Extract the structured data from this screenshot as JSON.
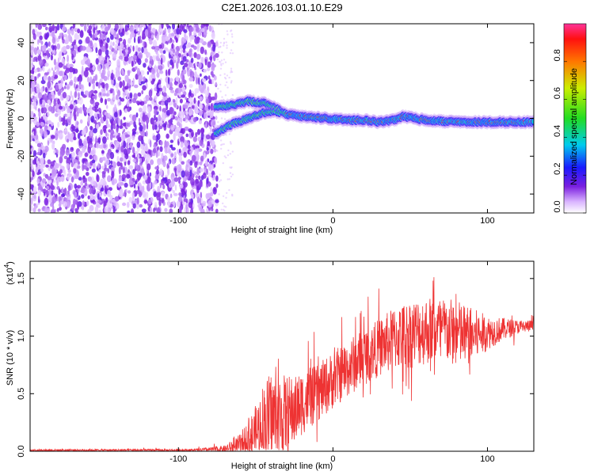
{
  "chart_data": [
    {
      "type": "heatmap",
      "title": "C2E1.2026.103.01.10.E29",
      "xlabel": "Height of straight line (km)",
      "ylabel": "Frequency (Hz)",
      "xlim": [
        -196,
        130
      ],
      "ylim": [
        -50,
        50
      ],
      "x_ticks": [
        -100,
        0,
        100
      ],
      "x_tick_labels": [
        "-100",
        "0",
        "100"
      ],
      "y_ticks": [
        -40,
        -20,
        0,
        20,
        40
      ],
      "y_tick_labels": [
        "-40",
        "-20",
        "0",
        "20",
        "40"
      ],
      "noise_region_x": [
        -196,
        -75
      ],
      "trace": [
        {
          "x": -76,
          "y_upper": 6,
          "y_lower": -8
        },
        {
          "x": -65,
          "y_upper": 7,
          "y_lower": -3
        },
        {
          "x": -55,
          "y_upper": 9,
          "y_lower": 0
        },
        {
          "x": -45,
          "y_upper": 8,
          "y_lower": 3
        },
        {
          "x": -38,
          "y_upper": 6,
          "y_lower": 4
        },
        {
          "x": -30,
          "y_upper": 2,
          "y_lower": 2
        },
        {
          "x": -20,
          "y_upper": 1,
          "y_lower": 1
        },
        {
          "x": -5,
          "y_upper": 0,
          "y_lower": 0
        },
        {
          "x": 10,
          "y_upper": -1,
          "y_lower": -1
        },
        {
          "x": 20,
          "y_upper": -1,
          "y_lower": -1
        },
        {
          "x": 30,
          "y_upper": -2,
          "y_lower": -2
        },
        {
          "x": 40,
          "y_upper": -1,
          "y_lower": -1
        },
        {
          "x": 45,
          "y_upper": 1,
          "y_lower": 1
        },
        {
          "x": 60,
          "y_upper": -1,
          "y_lower": -1
        },
        {
          "x": 80,
          "y_upper": -2,
          "y_lower": -2
        },
        {
          "x": 100,
          "y_upper": -2,
          "y_lower": -2
        },
        {
          "x": 130,
          "y_upper": -2,
          "y_lower": -2
        }
      ],
      "colorbar": {
        "label": "Normalized spectral amplitude",
        "ticks": [
          "0.0",
          "0.2",
          "0.4",
          "0.6",
          "0.8"
        ],
        "tick_values": [
          0.0,
          0.2,
          0.4,
          0.6,
          0.8
        ],
        "range": [
          0,
          1
        ]
      }
    },
    {
      "type": "line",
      "xlabel": "Height of straight line (km)",
      "ylabel": "SNR (10 * v/v)",
      "y_multiplier_base": "(x10",
      "y_multiplier_exp": "4",
      "y_multiplier_close": ")",
      "xlim": [
        -196,
        130
      ],
      "ylim": [
        0,
        1.65
      ],
      "x_ticks": [
        -100,
        0,
        100
      ],
      "x_tick_labels": [
        "-100",
        "0",
        "100"
      ],
      "y_ticks": [
        0.0,
        0.5,
        1.0,
        1.5
      ],
      "y_tick_labels": [
        "0.0",
        "0.5",
        "1.0",
        "1.5"
      ],
      "series_color": "#ee3333",
      "envelope": {
        "x": [
          -196,
          -90,
          -70,
          -60,
          -50,
          -45,
          -40,
          -35,
          -30,
          -25,
          -20,
          -10,
          0,
          10,
          20,
          30,
          40,
          50,
          60,
          70,
          80,
          90,
          100,
          110,
          120,
          130
        ],
        "mean": [
          0.01,
          0.01,
          0.02,
          0.05,
          0.15,
          0.25,
          0.3,
          0.28,
          0.32,
          0.35,
          0.42,
          0.5,
          0.62,
          0.72,
          0.82,
          0.9,
          0.98,
          1.02,
          1.05,
          1.06,
          1.02,
          1.0,
          1.03,
          1.06,
          1.08,
          1.09
        ],
        "amp": [
          0.008,
          0.01,
          0.03,
          0.1,
          0.25,
          0.35,
          0.4,
          0.38,
          0.35,
          0.3,
          0.28,
          0.25,
          0.25,
          0.25,
          0.25,
          0.25,
          0.28,
          0.3,
          0.3,
          0.28,
          0.3,
          0.25,
          0.15,
          0.1,
          0.06,
          0.05
        ]
      }
    }
  ]
}
